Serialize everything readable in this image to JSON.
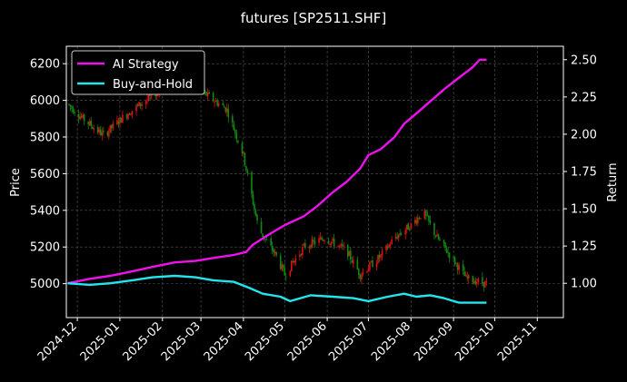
{
  "chart_data": {
    "type": "line",
    "title": "futures [SP2511.SHF]",
    "ylabel_left": "Price",
    "ylabel_right": "Return",
    "y_left_ticks": [
      5000,
      5200,
      5400,
      5600,
      5800,
      6000,
      6200
    ],
    "y_right_ticks": [
      "1.00",
      "1.25",
      "1.50",
      "1.75",
      "2.00",
      "2.25",
      "2.50"
    ],
    "x_ticks": [
      "2024-12",
      "2025-01",
      "2025-02",
      "2025-03",
      "2025-04",
      "2025-05",
      "2025-06",
      "2025-07",
      "2025-08",
      "2025-09",
      "2025-10",
      "2025-11"
    ],
    "x_range": [
      "2024-11-23",
      "2025-11-20"
    ],
    "y_left_range": [
      4815,
      6295
    ],
    "y_right_range": [
      0.77,
      2.59
    ],
    "legend_position": "top-left",
    "grid": true,
    "colors": {
      "ai": "#ee11ee",
      "bh": "#22e6ee",
      "up": "#dd1111",
      "down": "#118811"
    },
    "series": [
      {
        "name": "AI Strategy",
        "color": "#ee11ee",
        "axis": "right",
        "x": [
          "2024-11-24",
          "2024-12-10",
          "2024-12-25",
          "2025-01-10",
          "2025-01-25",
          "2025-02-10",
          "2025-02-25",
          "2025-03-10",
          "2025-03-25",
          "2025-04-03",
          "2025-04-08",
          "2025-04-20",
          "2025-05-01",
          "2025-05-15",
          "2025-05-25",
          "2025-06-05",
          "2025-06-15",
          "2025-06-25",
          "2025-07-01",
          "2025-07-10",
          "2025-07-20",
          "2025-07-27",
          "2025-08-05",
          "2025-08-15",
          "2025-08-25",
          "2025-09-05",
          "2025-09-15",
          "2025-09-20",
          "2025-09-25"
        ],
        "y": [
          1.0,
          1.03,
          1.05,
          1.08,
          1.11,
          1.14,
          1.15,
          1.17,
          1.19,
          1.21,
          1.26,
          1.33,
          1.39,
          1.45,
          1.52,
          1.61,
          1.68,
          1.77,
          1.86,
          1.9,
          1.98,
          2.07,
          2.14,
          2.22,
          2.3,
          2.38,
          2.45,
          2.5,
          2.5
        ]
      },
      {
        "name": "Buy-and-Hold",
        "color": "#22e6ee",
        "axis": "right",
        "x": [
          "2024-11-24",
          "2024-12-10",
          "2024-12-25",
          "2025-01-10",
          "2025-01-25",
          "2025-02-10",
          "2025-02-25",
          "2025-03-10",
          "2025-03-25",
          "2025-04-05",
          "2025-04-15",
          "2025-04-28",
          "2025-05-05",
          "2025-05-20",
          "2025-06-05",
          "2025-06-20",
          "2025-07-01",
          "2025-07-15",
          "2025-07-27",
          "2025-08-05",
          "2025-08-15",
          "2025-08-25",
          "2025-09-05",
          "2025-09-15",
          "2025-09-25"
        ],
        "y": [
          1.0,
          0.99,
          1.0,
          1.02,
          1.04,
          1.05,
          1.04,
          1.02,
          1.01,
          0.97,
          0.93,
          0.91,
          0.88,
          0.92,
          0.91,
          0.9,
          0.88,
          0.91,
          0.93,
          0.91,
          0.92,
          0.9,
          0.87,
          0.87,
          0.87
        ]
      }
    ],
    "price_series": {
      "name": "Price",
      "axis": "left",
      "anchors_x": [
        "2024-11-24",
        "2024-12-05",
        "2024-12-20",
        "2025-01-05",
        "2025-01-20",
        "2025-02-05",
        "2025-02-20",
        "2025-03-05",
        "2025-03-20",
        "2025-04-01",
        "2025-04-05",
        "2025-04-12",
        "2025-04-25",
        "2025-05-01",
        "2025-05-15",
        "2025-05-30",
        "2025-06-15",
        "2025-06-25",
        "2025-07-10",
        "2025-07-20",
        "2025-08-01",
        "2025-08-10",
        "2025-08-20",
        "2025-09-01",
        "2025-09-10",
        "2025-09-25"
      ],
      "anchors_y": [
        5980,
        5900,
        5810,
        5920,
        6000,
        6090,
        6070,
        6030,
        5950,
        5700,
        5550,
        5300,
        5150,
        5050,
        5200,
        5250,
        5180,
        5050,
        5150,
        5250,
        5320,
        5390,
        5250,
        5130,
        5030,
        5000
      ]
    }
  },
  "legend": {
    "ai_label": "AI Strategy",
    "bh_label": "Buy-and-Hold"
  }
}
